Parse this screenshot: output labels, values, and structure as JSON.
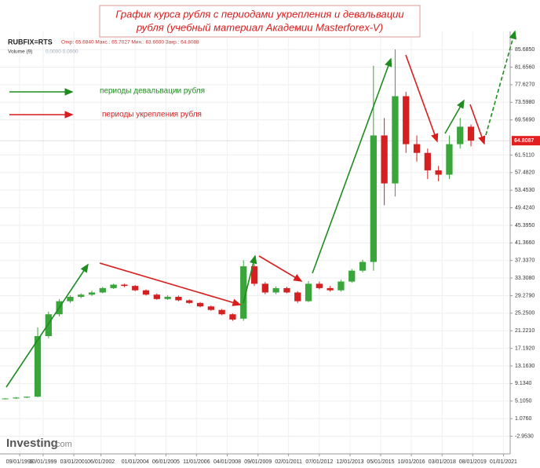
{
  "chart_data": {
    "type": "candlestick",
    "title": [
      "График курса рубля с периодами укрепления и девальвации",
      "рубля (учебный материал Академии Masterforex-V)"
    ],
    "symbol": "RUBFIX=RTS",
    "ohlc_text": "Откр: 65.6840  Макс.: 65.7027  Мин.: 63.6600  Закр.: 64.8088",
    "volume_text": "Volume (9)",
    "volume_values_text": "0.0000  0.0000",
    "legend": [
      {
        "name": "периоды девальвации рубля",
        "color": "#1e8c1e"
      },
      {
        "name": "периоды укрепления рубля",
        "color": "#d91c1c"
      }
    ],
    "last_price_label": "64.8087",
    "brand": "Investing",
    "brand_suffix": ".com",
    "up_color": "#3aa53a",
    "down_color": "#d42020",
    "grid": true,
    "x": [
      1998.0,
      1998.5,
      1999.0,
      1999.5,
      2000.0,
      2000.5,
      2001.0,
      2001.5,
      2002.0,
      2002.5,
      2003.0,
      2003.5,
      2004.0,
      2004.5,
      2005.0,
      2005.5,
      2006.0,
      2006.5,
      2007.0,
      2007.5,
      2008.0,
      2008.5,
      2009.0,
      2009.5,
      2010.0,
      2010.5,
      2011.0,
      2011.5,
      2012.0,
      2012.5,
      2013.0,
      2013.5,
      2014.0,
      2014.5,
      2015.0,
      2015.5,
      2016.0,
      2016.5,
      2017.0,
      2017.5,
      2018.0,
      2018.5,
      2019.0,
      2019.5
    ],
    "open": [
      5.6,
      5.7,
      5.9,
      6.1,
      20,
      25,
      28,
      29,
      29.5,
      30,
      31,
      31.8,
      31.5,
      30.5,
      29.5,
      28.5,
      29,
      28.2,
      27.6,
      26.8,
      26,
      25,
      24,
      36,
      32,
      30,
      31,
      30,
      28,
      32,
      31,
      30.5,
      32.5,
      35,
      37,
      66,
      55,
      75,
      64,
      62,
      58,
      57,
      64,
      68
    ],
    "high": [
      5.8,
      6.0,
      6.2,
      22,
      25.6,
      28.5,
      29.4,
      29.8,
      30.4,
      31.3,
      32,
      32,
      31.7,
      30.7,
      29.8,
      29.4,
      29.3,
      28.4,
      27.8,
      27,
      26.2,
      25.2,
      37.4,
      36.5,
      32.4,
      31.4,
      31.3,
      30.3,
      32.6,
      32.5,
      31.5,
      32.9,
      35.4,
      37.5,
      82,
      70,
      85.7,
      76,
      66,
      63,
      59,
      66,
      70,
      68.5
    ],
    "low": [
      5.5,
      5.6,
      5.8,
      6.0,
      19.5,
      24.5,
      27.6,
      28.7,
      29.2,
      29.8,
      30.8,
      31.2,
      30.3,
      29.3,
      28.3,
      28.3,
      28,
      27.4,
      26.6,
      25.8,
      24.8,
      23.5,
      23.5,
      31.5,
      29.6,
      29.6,
      29.8,
      27.6,
      27.8,
      30.7,
      30.2,
      30.2,
      32.2,
      34.6,
      35,
      50,
      52,
      62,
      60,
      56,
      55.5,
      56,
      63,
      63.5
    ],
    "close": [
      5.7,
      5.9,
      6.1,
      20,
      25,
      28,
      29,
      29.5,
      30,
      31,
      31.8,
      31.5,
      30.5,
      29.5,
      28.5,
      29,
      28.2,
      27.6,
      26.8,
      26,
      25,
      23.8,
      36,
      32,
      30,
      31,
      30,
      28,
      32,
      31,
      30.5,
      32.5,
      35,
      37,
      66,
      55,
      75,
      64,
      62,
      58,
      57,
      64,
      68,
      64.8
    ],
    "xlim": [
      1997.76,
      2021.31
    ],
    "xticks": [
      {
        "value": 1998.67,
        "label": "09/01/1998"
      },
      {
        "value": 1999.75,
        "label": "10/01/1999"
      },
      {
        "value": 2001.17,
        "label": "03/01/2001"
      },
      {
        "value": 2002.42,
        "label": "06/01/2002"
      },
      {
        "value": 2004.0,
        "label": "01/01/2004"
      },
      {
        "value": 2005.42,
        "label": "06/01/2005"
      },
      {
        "value": 2006.83,
        "label": "11/01/2006"
      },
      {
        "value": 2008.25,
        "label": "04/01/2008"
      },
      {
        "value": 2009.67,
        "label": "09/01/2009"
      },
      {
        "value": 2011.08,
        "label": "02/01/2011"
      },
      {
        "value": 2012.5,
        "label": "07/01/2012"
      },
      {
        "value": 2013.92,
        "label": "12/01/2013"
      },
      {
        "value": 2015.33,
        "label": "05/01/2015"
      },
      {
        "value": 2016.75,
        "label": "10/01/2016"
      },
      {
        "value": 2018.17,
        "label": "03/01/2018"
      },
      {
        "value": 2019.58,
        "label": "08/01/2019"
      },
      {
        "value": 2021.0,
        "label": "01/01/2021"
      }
    ],
    "ylim": [
      -7,
      89.85
    ],
    "yticks": [
      {
        "value": -2.953,
        "label": "-2.9530"
      },
      {
        "value": 1.076,
        "label": "1.0760"
      },
      {
        "value": 5.105,
        "label": "5.1050"
      },
      {
        "value": 9.134,
        "label": "9.1340"
      },
      {
        "value": 13.163,
        "label": "13.1630"
      },
      {
        "value": 17.192,
        "label": "17.1920"
      },
      {
        "value": 21.221,
        "label": "21.2210"
      },
      {
        "value": 25.25,
        "label": "25.2500"
      },
      {
        "value": 29.279,
        "label": "29.2790"
      },
      {
        "value": 33.308,
        "label": "33.3080"
      },
      {
        "value": 37.337,
        "label": "37.3370"
      },
      {
        "value": 41.366,
        "label": "41.3660"
      },
      {
        "value": 45.395,
        "label": "45.3950"
      },
      {
        "value": 49.424,
        "label": "49.4240"
      },
      {
        "value": 53.453,
        "label": "53.4530"
      },
      {
        "value": 57.482,
        "label": "57.4820"
      },
      {
        "value": 61.511,
        "label": "61.5110"
      },
      {
        "value": 69.569,
        "label": "69.5690"
      },
      {
        "value": 73.598,
        "label": "73.5980"
      },
      {
        "value": 77.627,
        "label": "77.6270"
      },
      {
        "value": 81.656,
        "label": "81.6560"
      },
      {
        "value": 85.685,
        "label": "85.6850"
      }
    ]
  }
}
